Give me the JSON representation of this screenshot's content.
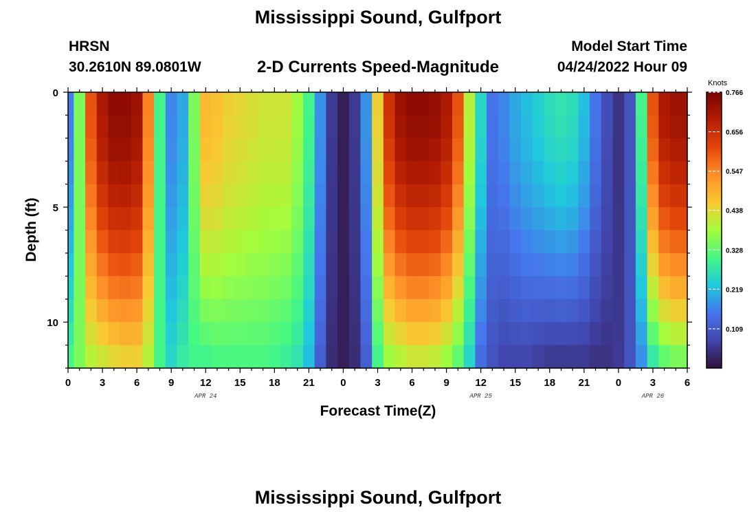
{
  "header": {
    "title": "Mississippi Sound, Gulfport",
    "station": "HRSN",
    "coords": "30.2610N  89.0801W",
    "subtitle": "2-D Currents Speed-Magnitude",
    "start_label": "Model Start Time",
    "start_value": "04/24/2022 Hour 09"
  },
  "footer": {
    "title": "Mississippi Sound, Gulfport"
  },
  "chart_data": {
    "type": "heatmap",
    "xlabel": "Forecast Time(Z)",
    "ylabel": "Depth (ft)",
    "x_range_hours": [
      0,
      54
    ],
    "x_ticks": [
      "0",
      "3",
      "6",
      "9",
      "12",
      "15",
      "18",
      "21",
      "0",
      "3",
      "6",
      "9",
      "12",
      "15",
      "18",
      "21",
      "0",
      "3",
      "6"
    ],
    "date_labels": [
      {
        "text": "APR 24",
        "hour": 12
      },
      {
        "text": "APR 25",
        "hour": 36
      },
      {
        "text": "APR 26",
        "hour": 51
      }
    ],
    "y_range_ft": [
      0,
      12
    ],
    "y_ticks": [
      "0",
      "5",
      "10"
    ],
    "colorbar": {
      "unit": "Knots",
      "min": 0,
      "max": 0.766,
      "ticks": [
        "0.766",
        "0.656",
        "0.547",
        "0.438",
        "0.328",
        "0.219",
        "0.109"
      ]
    },
    "time_hours": [
      0,
      1,
      2,
      3,
      4,
      5,
      6,
      7,
      8,
      9,
      10,
      11,
      12,
      13,
      14,
      15,
      16,
      17,
      18,
      19,
      20,
      21,
      22,
      23,
      24,
      25,
      26,
      27,
      28,
      29,
      30,
      31,
      32,
      33,
      34,
      35,
      36,
      37,
      38,
      39,
      40,
      41,
      42,
      43,
      44,
      45,
      46,
      47,
      48,
      49,
      50,
      51,
      52,
      53,
      54
    ],
    "surface_speed_knots": [
      0.16,
      0.35,
      0.6,
      0.7,
      0.74,
      0.74,
      0.72,
      0.55,
      0.3,
      0.17,
      0.2,
      0.35,
      0.48,
      0.47,
      0.45,
      0.44,
      0.43,
      0.42,
      0.42,
      0.42,
      0.38,
      0.3,
      0.18,
      0.06,
      0.02,
      0.06,
      0.18,
      0.45,
      0.65,
      0.72,
      0.74,
      0.74,
      0.73,
      0.7,
      0.6,
      0.4,
      0.25,
      0.15,
      0.17,
      0.2,
      0.22,
      0.24,
      0.26,
      0.27,
      0.26,
      0.22,
      0.15,
      0.09,
      0.05,
      0.1,
      0.3,
      0.6,
      0.7,
      0.72,
      0.72
    ],
    "bottom_speed_knots": [
      0.3,
      0.35,
      0.4,
      0.42,
      0.44,
      0.45,
      0.45,
      0.4,
      0.3,
      0.25,
      0.28,
      0.3,
      0.3,
      0.31,
      0.31,
      0.31,
      0.31,
      0.31,
      0.3,
      0.29,
      0.27,
      0.22,
      0.12,
      0.04,
      0.02,
      0.04,
      0.12,
      0.3,
      0.38,
      0.4,
      0.42,
      0.42,
      0.41,
      0.38,
      0.33,
      0.25,
      0.14,
      0.1,
      0.08,
      0.08,
      0.08,
      0.07,
      0.06,
      0.06,
      0.06,
      0.06,
      0.05,
      0.05,
      0.06,
      0.1,
      0.18,
      0.28,
      0.33,
      0.35,
      0.35
    ],
    "depth_levels_ft": [
      0,
      1,
      2,
      3,
      4,
      5,
      6,
      7,
      8,
      9,
      10,
      11
    ]
  }
}
